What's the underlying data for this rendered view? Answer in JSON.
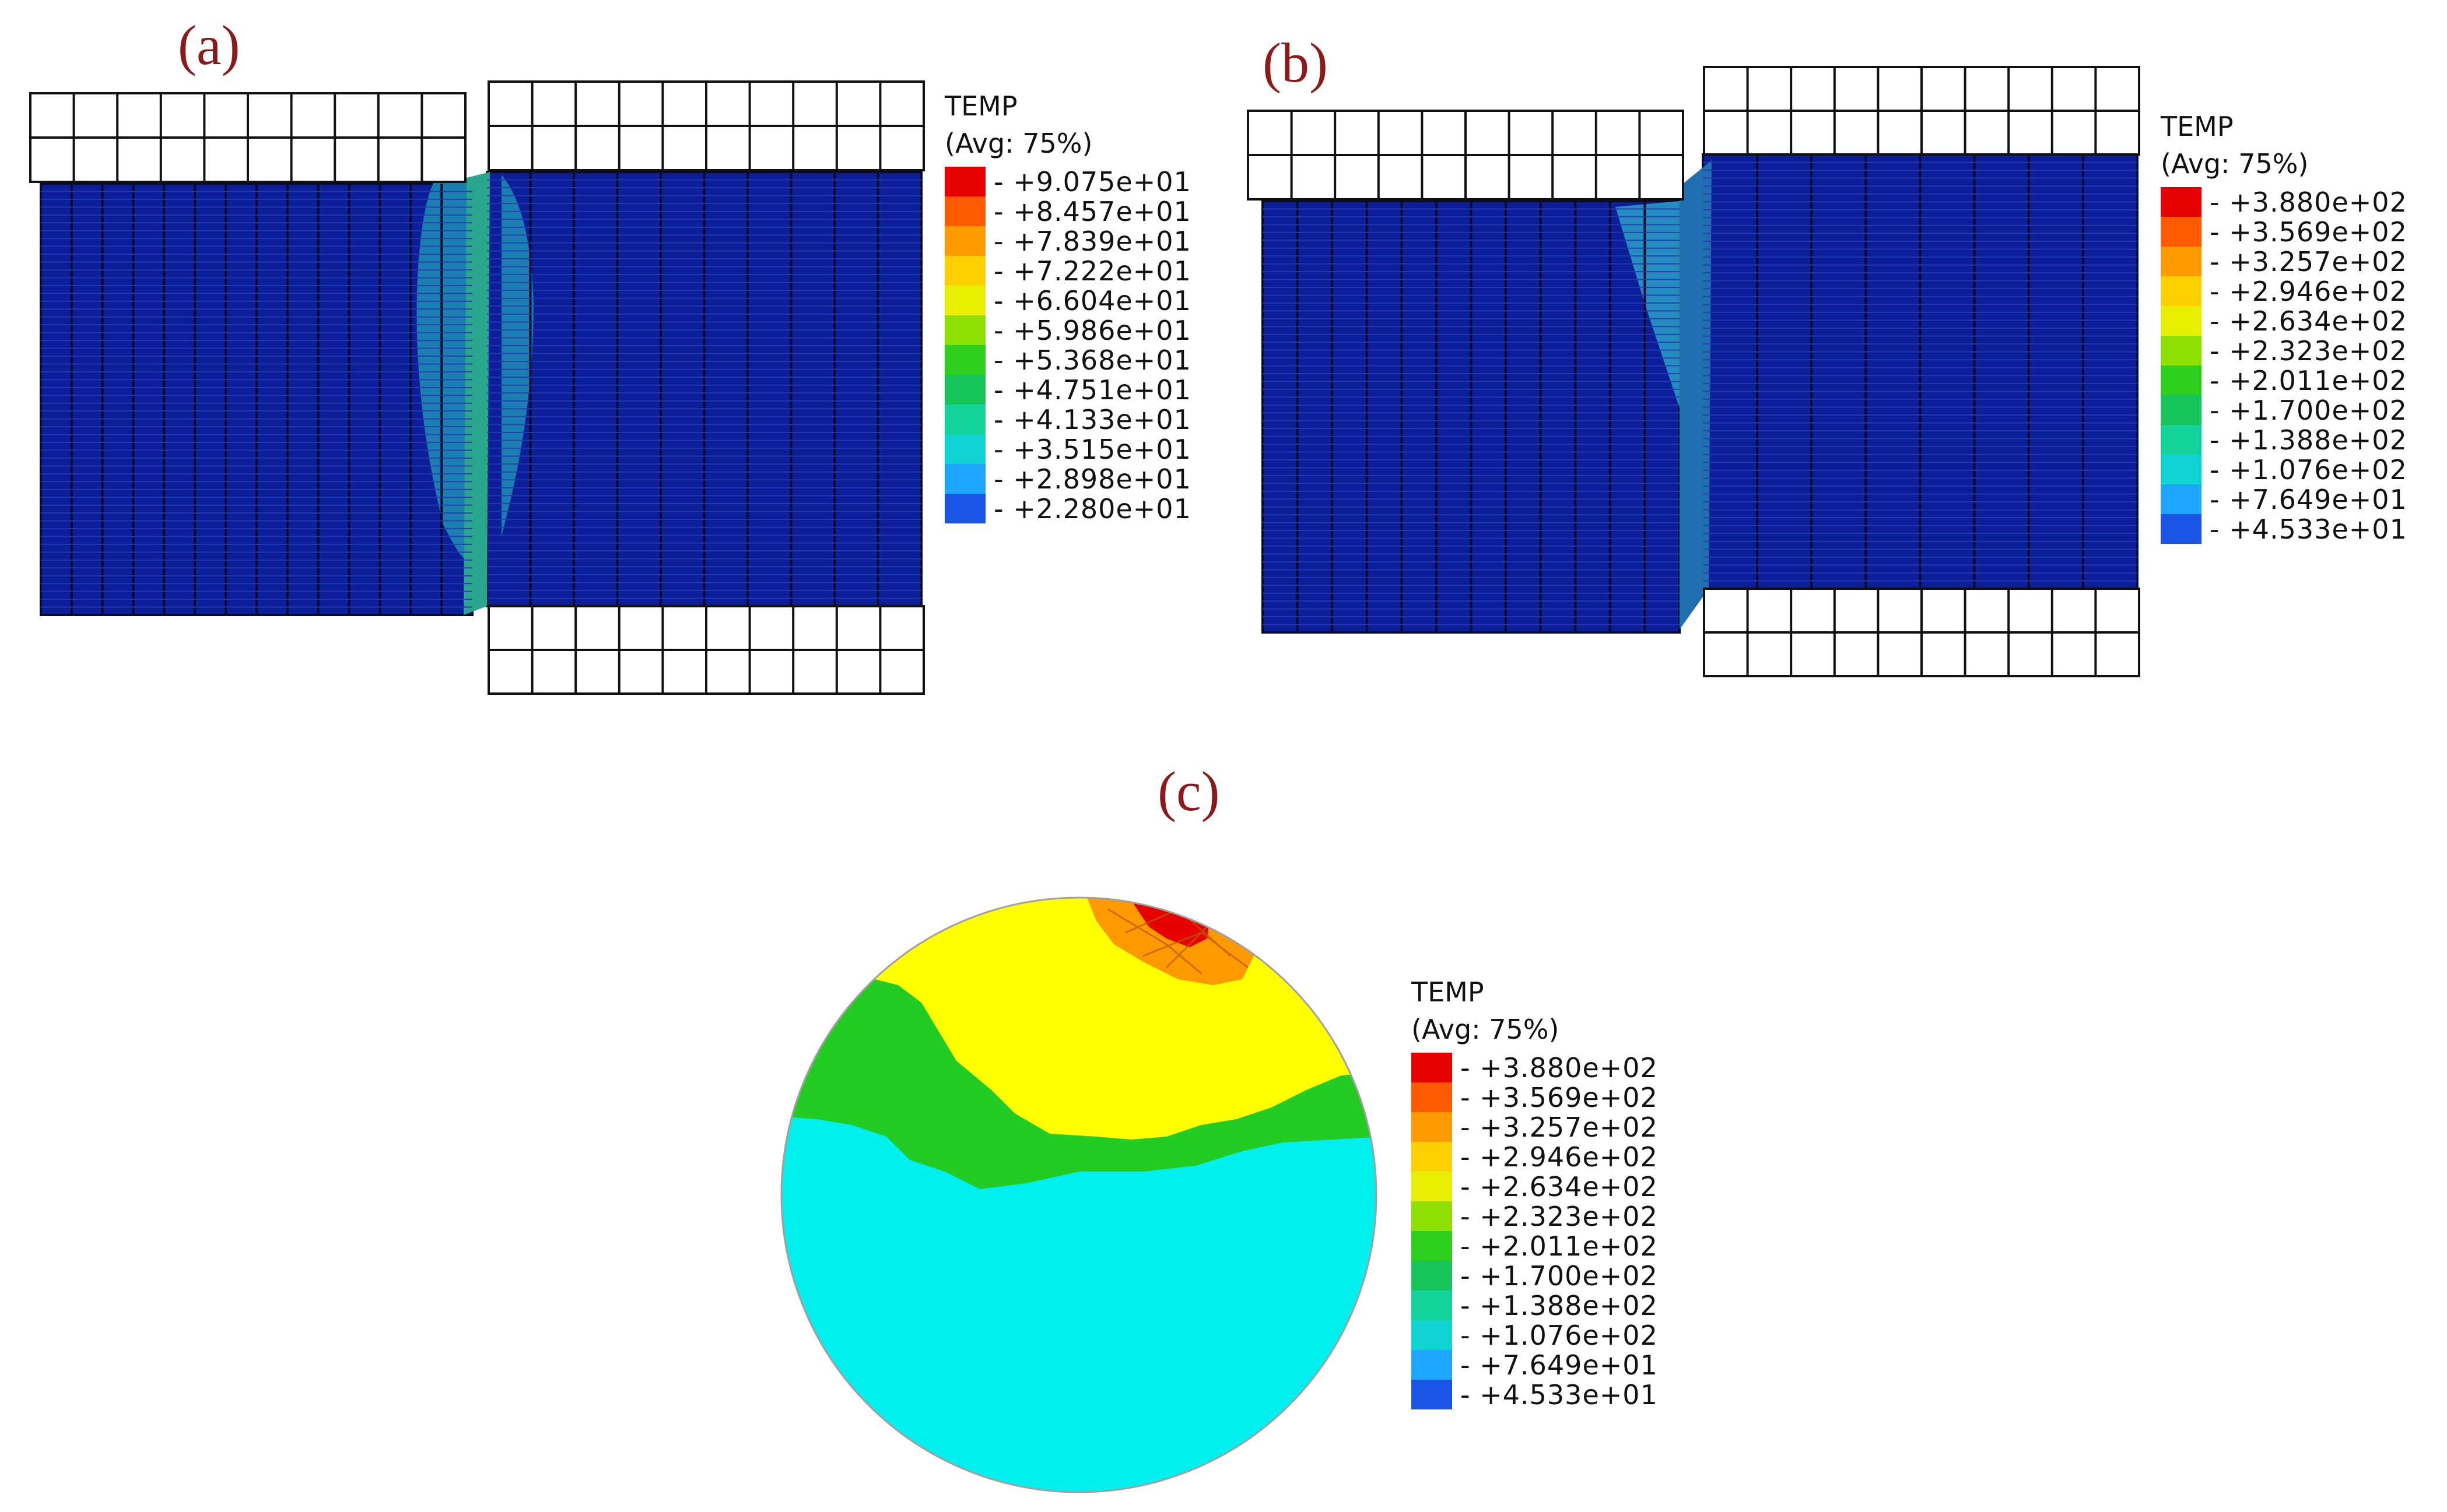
{
  "panels": {
    "a": {
      "label": "(a)",
      "legend": {
        "title": "TEMP",
        "subtitle": "(Avg: 75%)",
        "values": [
          "+9.075e+01",
          "+8.457e+01",
          "+7.839e+01",
          "+7.222e+01",
          "+6.604e+01",
          "+5.986e+01",
          "+5.368e+01",
          "+4.751e+01",
          "+4.133e+01",
          "+3.515e+01",
          "+2.898e+01",
          "+2.280e+01"
        ]
      }
    },
    "b": {
      "label": "(b)",
      "legend": {
        "title": "TEMP",
        "subtitle": "(Avg: 75%)",
        "values": [
          "+3.880e+02",
          "+3.569e+02",
          "+3.257e+02",
          "+2.946e+02",
          "+2.634e+02",
          "+2.323e+02",
          "+2.011e+02",
          "+1.700e+02",
          "+1.388e+02",
          "+1.076e+02",
          "+7.649e+01",
          "+4.533e+01"
        ]
      }
    },
    "c": {
      "label": "(c)",
      "legend": {
        "title": "TEMP",
        "subtitle": "(Avg: 75%)",
        "values": [
          "+3.880e+02",
          "+3.569e+02",
          "+3.257e+02",
          "+2.946e+02",
          "+2.634e+02",
          "+2.323e+02",
          "+2.011e+02",
          "+1.700e+02",
          "+1.388e+02",
          "+1.076e+02",
          "+7.649e+01",
          "+4.533e+01"
        ]
      }
    }
  },
  "colormap": [
    "#e60000",
    "#ff5a00",
    "#ff9a00",
    "#ffd000",
    "#e8f000",
    "#8ee000",
    "#2ecf1f",
    "#16c45a",
    "#14d49b",
    "#10d4d4",
    "#1ea6ff",
    "#1a55e6"
  ],
  "colors": {
    "specimen": "#0b1f9a",
    "mesh_line": "#0a0a2a",
    "die": "#ffffff",
    "cyan": "#00f0f0",
    "yellow": "#ffff00",
    "green": "#22cc22",
    "orange": "#ff9900",
    "red": "#e60000"
  }
}
